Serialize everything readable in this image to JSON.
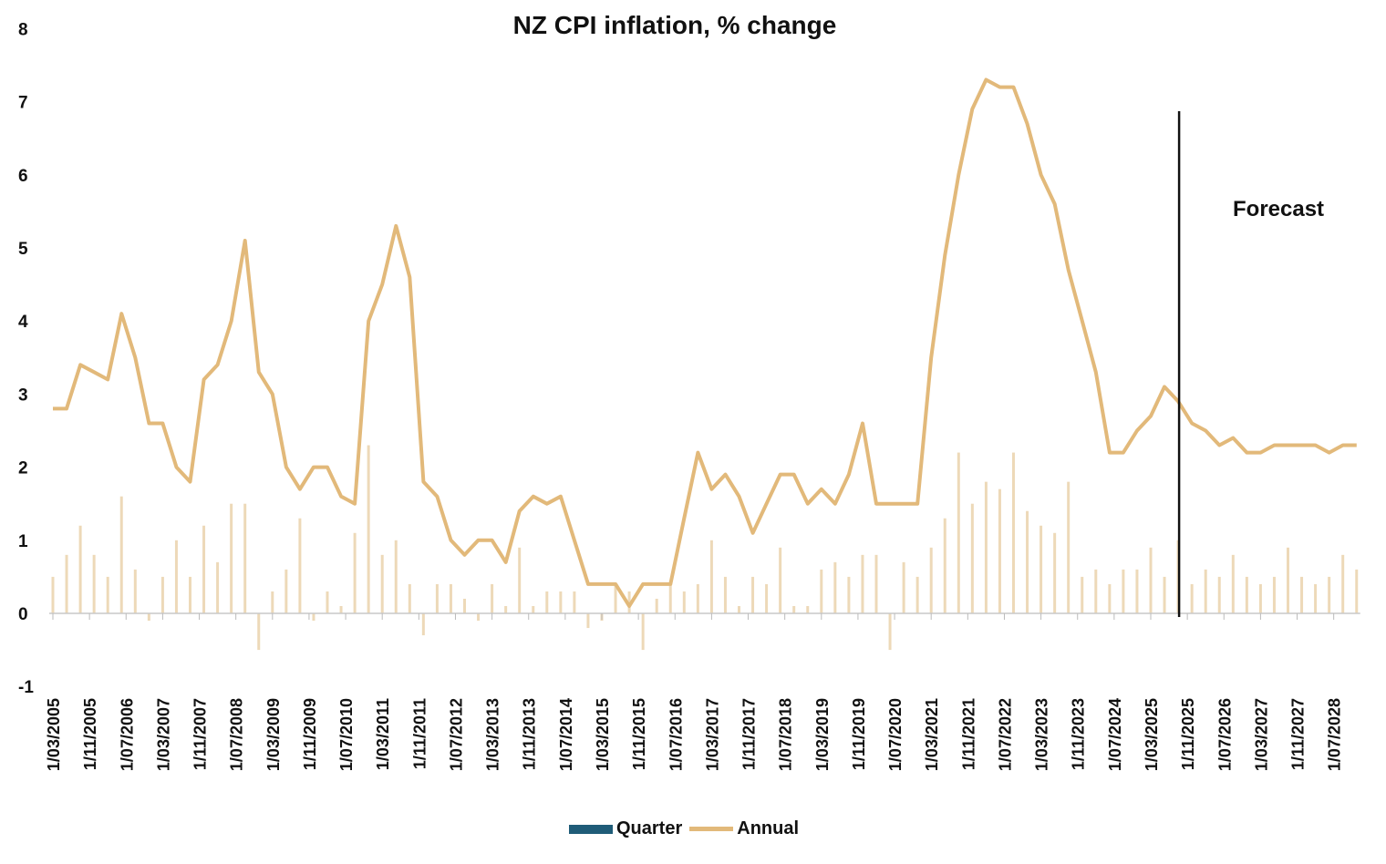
{
  "chart_data": {
    "type": "bar+line",
    "title": "NZ CPI inflation, % change",
    "xlabel": "",
    "ylabel": "",
    "ylim": [
      -1,
      8
    ],
    "yticks": [
      -1,
      0,
      1,
      2,
      3,
      4,
      5,
      6,
      7,
      8
    ],
    "x_tick_labels": [
      "1/03/2005",
      "1/11/2005",
      "1/07/2006",
      "1/03/2007",
      "1/11/2007",
      "1/07/2008",
      "1/03/2009",
      "1/11/2009",
      "1/07/2010",
      "1/03/2011",
      "1/11/2011",
      "1/07/2012",
      "1/03/2013",
      "1/11/2013",
      "1/07/2014",
      "1/03/2015",
      "1/11/2015",
      "1/07/2016",
      "1/03/2017",
      "1/11/2017",
      "1/07/2018",
      "1/03/2019",
      "1/11/2019",
      "1/07/2020",
      "1/03/2021",
      "1/11/2021",
      "1/07/2022",
      "1/03/2023",
      "1/11/2023",
      "1/07/2024",
      "1/03/2025",
      "1/11/2025",
      "1/07/2026",
      "1/03/2027",
      "1/11/2027",
      "1/07/2028"
    ],
    "legend": [
      {
        "name": "Quarter",
        "color": "#1f5c78"
      },
      {
        "name": "Annual",
        "color": "#e2b97a"
      }
    ],
    "legend_position": "bottom",
    "forecast_label": "Forecast",
    "forecast_start_index": 82,
    "series": [
      {
        "name": "Quarter",
        "type": "bar",
        "color": "#edd9b8",
        "values": [
          0.5,
          0.8,
          1.2,
          0.8,
          0.5,
          1.6,
          0.6,
          -0.1,
          0.5,
          1.0,
          0.5,
          1.2,
          0.7,
          1.5,
          1.5,
          -0.5,
          0.3,
          0.6,
          1.3,
          -0.1,
          0.3,
          0.1,
          1.1,
          2.3,
          0.8,
          1.0,
          0.4,
          -0.3,
          0.4,
          0.4,
          0.2,
          -0.1,
          0.4,
          0.1,
          0.9,
          0.1,
          0.3,
          0.3,
          0.3,
          -0.2,
          -0.1,
          0.4,
          0.3,
          -0.5,
          0.2,
          0.4,
          0.3,
          0.4,
          1.0,
          0.5,
          0.1,
          0.5,
          0.4,
          0.9,
          0.1,
          0.1,
          0.6,
          0.7,
          0.5,
          0.8,
          0.8,
          -0.5,
          0.7,
          0.5,
          0.9,
          1.3,
          2.2,
          1.5,
          1.8,
          1.7,
          2.2,
          1.4,
          1.2,
          1.1,
          1.8,
          0.5,
          0.6,
          0.4,
          0.6,
          0.6,
          0.9,
          0.5,
          1.0,
          0.4,
          0.6,
          0.5,
          0.8,
          0.5,
          0.4,
          0.5,
          0.9,
          0.5,
          0.4,
          0.5,
          0.8,
          0.6
        ]
      },
      {
        "name": "Annual",
        "type": "line",
        "color": "#e2b97a",
        "values": [
          2.8,
          2.8,
          3.4,
          3.3,
          3.2,
          4.1,
          3.5,
          2.6,
          2.6,
          2.0,
          1.8,
          3.2,
          3.4,
          4.0,
          5.1,
          3.3,
          3.0,
          2.0,
          1.7,
          2.0,
          2.0,
          1.6,
          1.5,
          4.0,
          4.5,
          5.3,
          4.6,
          1.8,
          1.6,
          1.0,
          0.8,
          1.0,
          1.0,
          0.7,
          1.4,
          1.6,
          1.5,
          1.6,
          1.0,
          0.4,
          0.4,
          0.4,
          0.1,
          0.4,
          0.4,
          0.4,
          1.3,
          2.2,
          1.7,
          1.9,
          1.6,
          1.1,
          1.5,
          1.9,
          1.9,
          1.5,
          1.7,
          1.5,
          1.9,
          2.6,
          1.5,
          1.5,
          1.5,
          1.5,
          3.5,
          4.9,
          6.0,
          6.9,
          7.3,
          7.2,
          7.2,
          6.7,
          6.0,
          5.6,
          4.7,
          4.0,
          3.3,
          2.2,
          2.2,
          2.5,
          2.7,
          3.1,
          2.9,
          2.6,
          2.5,
          2.3,
          2.4,
          2.2,
          2.2,
          2.3,
          2.3,
          2.3,
          2.3,
          2.2,
          2.3,
          2.3
        ]
      }
    ]
  }
}
